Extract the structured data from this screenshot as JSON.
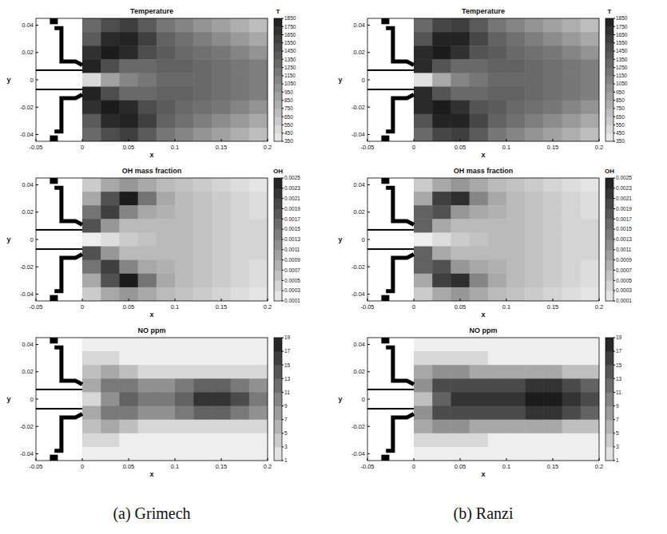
{
  "chart_data": [
    {
      "type": "heatmap",
      "title": "Temperature",
      "xlabel": "x",
      "ylabel": "y",
      "xlim": [
        -0.05,
        0.2
      ],
      "ylim": [
        -0.045,
        0.045
      ],
      "xticks": [
        -0.05,
        0,
        0.05,
        0.1,
        0.15,
        0.2
      ],
      "yticks": [
        -0.04,
        -0.02,
        0,
        0.02,
        0.04
      ],
      "x": [
        0.01,
        0.03,
        0.05,
        0.07,
        0.09,
        0.11,
        0.13,
        0.15,
        0.17,
        0.19
      ],
      "y": [
        0.04,
        0.03,
        0.02,
        0.01,
        0,
        -0.01,
        -0.02,
        -0.03,
        -0.04
      ],
      "values": [
        [
          1300,
          1500,
          1600,
          1400,
          1200,
          1100,
          1000,
          900,
          800,
          700
        ],
        [
          1400,
          1750,
          1800,
          1600,
          1350,
          1250,
          1150,
          1050,
          950,
          850
        ],
        [
          1700,
          1850,
          1750,
          1500,
          1400,
          1300,
          1250,
          1200,
          1100,
          1000
        ],
        [
          1800,
          1500,
          1300,
          1300,
          1350,
          1350,
          1300,
          1250,
          1200,
          1150
        ],
        [
          500,
          900,
          1100,
          1200,
          1300,
          1300,
          1300,
          1250,
          1200,
          1150
        ],
        [
          1800,
          1500,
          1300,
          1300,
          1350,
          1350,
          1300,
          1250,
          1200,
          1150
        ],
        [
          1700,
          1850,
          1750,
          1500,
          1400,
          1300,
          1250,
          1200,
          1100,
          1000
        ],
        [
          1400,
          1750,
          1800,
          1600,
          1350,
          1250,
          1150,
          1050,
          950,
          850
        ],
        [
          1300,
          1500,
          1600,
          1400,
          1200,
          1100,
          1000,
          900,
          800,
          700
        ]
      ],
      "colorbar_label": "T",
      "zlim": [
        350,
        1850
      ],
      "zticks": [
        350,
        450,
        550,
        650,
        750,
        850,
        950,
        1050,
        1150,
        1250,
        1350,
        1450,
        1550,
        1650,
        1750,
        1850
      ]
    },
    {
      "type": "heatmap",
      "title": "Temperature",
      "xlabel": "x",
      "ylabel": "y",
      "xlim": [
        -0.05,
        0.2
      ],
      "ylim": [
        -0.045,
        0.045
      ],
      "xticks": [
        -0.05,
        0,
        0.05,
        0.1,
        0.15,
        0.2
      ],
      "yticks": [
        -0.04,
        -0.02,
        0,
        0.02,
        0.04
      ],
      "x": [
        0.01,
        0.03,
        0.05,
        0.07,
        0.09,
        0.11,
        0.13,
        0.15,
        0.17,
        0.19
      ],
      "y": [
        0.04,
        0.03,
        0.02,
        0.01,
        0,
        -0.01,
        -0.02,
        -0.03,
        -0.04
      ],
      "values": [
        [
          1300,
          1550,
          1600,
          1400,
          1200,
          1100,
          1000,
          900,
          800,
          700
        ],
        [
          1450,
          1800,
          1800,
          1550,
          1350,
          1250,
          1150,
          1050,
          950,
          850
        ],
        [
          1750,
          1850,
          1700,
          1450,
          1400,
          1300,
          1250,
          1200,
          1100,
          1000
        ],
        [
          1750,
          1450,
          1300,
          1300,
          1350,
          1350,
          1300,
          1250,
          1200,
          1150
        ],
        [
          450,
          850,
          1100,
          1200,
          1300,
          1300,
          1300,
          1250,
          1200,
          1150
        ],
        [
          1750,
          1450,
          1300,
          1300,
          1350,
          1350,
          1300,
          1250,
          1200,
          1150
        ],
        [
          1750,
          1850,
          1700,
          1450,
          1400,
          1300,
          1250,
          1200,
          1100,
          1000
        ],
        [
          1450,
          1800,
          1800,
          1550,
          1350,
          1250,
          1150,
          1050,
          950,
          850
        ],
        [
          1300,
          1550,
          1600,
          1400,
          1200,
          1100,
          1000,
          900,
          800,
          700
        ]
      ],
      "colorbar_label": "T",
      "zlim": [
        350,
        1850
      ],
      "zticks": [
        350,
        450,
        550,
        650,
        750,
        850,
        950,
        1050,
        1150,
        1250,
        1350,
        1450,
        1550,
        1650,
        1750,
        1850
      ]
    },
    {
      "type": "heatmap",
      "title": "OH mass fraction",
      "xlabel": "x",
      "ylabel": "y",
      "xlim": [
        -0.05,
        0.2
      ],
      "ylim": [
        -0.045,
        0.045
      ],
      "xticks": [
        -0.05,
        0,
        0.05,
        0.1,
        0.15,
        0.2
      ],
      "yticks": [
        -0.04,
        -0.02,
        0,
        0.02,
        0.04
      ],
      "x": [
        0.01,
        0.03,
        0.05,
        0.07,
        0.09,
        0.11,
        0.13,
        0.15,
        0.17,
        0.19
      ],
      "y": [
        0.04,
        0.03,
        0.02,
        0.01,
        0,
        -0.01,
        -0.02,
        -0.03,
        -0.04
      ],
      "values": [
        [
          0.0005,
          0.0009,
          0.0011,
          0.0009,
          0.0007,
          0.0006,
          0.0005,
          0.0004,
          0.0003,
          0.0002
        ],
        [
          0.0009,
          0.0019,
          0.0025,
          0.0015,
          0.0009,
          0.0007,
          0.0006,
          0.0005,
          0.0004,
          0.0003
        ],
        [
          0.0015,
          0.0021,
          0.0013,
          0.0009,
          0.0008,
          0.0007,
          0.0006,
          0.0005,
          0.0004,
          0.0003
        ],
        [
          0.0019,
          0.0011,
          0.0007,
          0.0007,
          0.0007,
          0.0007,
          0.0006,
          0.0005,
          0.0004,
          0.0004
        ],
        [
          0.0001,
          0.0003,
          0.0005,
          0.0006,
          0.0007,
          0.0007,
          0.0006,
          0.0005,
          0.0004,
          0.0004
        ],
        [
          0.0019,
          0.0011,
          0.0007,
          0.0007,
          0.0007,
          0.0007,
          0.0006,
          0.0005,
          0.0004,
          0.0004
        ],
        [
          0.0015,
          0.0021,
          0.0013,
          0.0009,
          0.0008,
          0.0007,
          0.0006,
          0.0005,
          0.0004,
          0.0003
        ],
        [
          0.0009,
          0.0019,
          0.0025,
          0.0015,
          0.0009,
          0.0007,
          0.0006,
          0.0005,
          0.0004,
          0.0003
        ],
        [
          0.0005,
          0.0009,
          0.0011,
          0.0009,
          0.0007,
          0.0006,
          0.0005,
          0.0004,
          0.0003,
          0.0002
        ]
      ],
      "colorbar_label": "OH",
      "zlim": [
        0.0001,
        0.0025
      ],
      "zticks": [
        0.0001,
        0.0003,
        0.0005,
        0.0007,
        0.0009,
        0.0011,
        0.0013,
        0.0015,
        0.0017,
        0.0019,
        0.0021,
        0.0023,
        0.0025
      ]
    },
    {
      "type": "heatmap",
      "title": "OH mass fraction",
      "xlabel": "x",
      "ylabel": "y",
      "xlim": [
        -0.05,
        0.2
      ],
      "ylim": [
        -0.045,
        0.045
      ],
      "xticks": [
        -0.05,
        0,
        0.05,
        0.1,
        0.15,
        0.2
      ],
      "yticks": [
        -0.04,
        -0.02,
        0,
        0.02,
        0.04
      ],
      "x": [
        0.01,
        0.03,
        0.05,
        0.07,
        0.09,
        0.11,
        0.13,
        0.15,
        0.17,
        0.19
      ],
      "y": [
        0.04,
        0.03,
        0.02,
        0.01,
        0,
        -0.01,
        -0.02,
        -0.03,
        -0.04
      ],
      "values": [
        [
          0.0005,
          0.0009,
          0.0011,
          0.0009,
          0.0007,
          0.0006,
          0.0005,
          0.0004,
          0.0003,
          0.0002
        ],
        [
          0.0009,
          0.0021,
          0.0023,
          0.0013,
          0.0009,
          0.0007,
          0.0006,
          0.0005,
          0.0004,
          0.0003
        ],
        [
          0.0017,
          0.0019,
          0.0011,
          0.0009,
          0.0008,
          0.0007,
          0.0006,
          0.0005,
          0.0004,
          0.0003
        ],
        [
          0.0017,
          0.0009,
          0.0007,
          0.0007,
          0.0007,
          0.0007,
          0.0006,
          0.0005,
          0.0004,
          0.0004
        ],
        [
          0.0001,
          0.0003,
          0.0005,
          0.0006,
          0.0007,
          0.0007,
          0.0006,
          0.0005,
          0.0004,
          0.0004
        ],
        [
          0.0017,
          0.0009,
          0.0007,
          0.0007,
          0.0007,
          0.0007,
          0.0006,
          0.0005,
          0.0004,
          0.0004
        ],
        [
          0.0017,
          0.0019,
          0.0011,
          0.0009,
          0.0008,
          0.0007,
          0.0006,
          0.0005,
          0.0004,
          0.0003
        ],
        [
          0.0009,
          0.0021,
          0.0023,
          0.0013,
          0.0009,
          0.0007,
          0.0006,
          0.0005,
          0.0004,
          0.0003
        ],
        [
          0.0005,
          0.0009,
          0.0011,
          0.0009,
          0.0007,
          0.0006,
          0.0005,
          0.0004,
          0.0003,
          0.0002
        ]
      ],
      "colorbar_label": "OH",
      "zlim": [
        0.0001,
        0.0025
      ],
      "zticks": [
        0.0001,
        0.0003,
        0.0005,
        0.0007,
        0.0009,
        0.0011,
        0.0013,
        0.0015,
        0.0017,
        0.0019,
        0.0021,
        0.0023,
        0.0025
      ]
    },
    {
      "type": "heatmap",
      "title": "NO ppm",
      "xlabel": "x",
      "ylabel": "y",
      "xlim": [
        -0.05,
        0.2
      ],
      "ylim": [
        -0.045,
        0.045
      ],
      "xticks": [
        -0.05,
        0,
        0.05,
        0.1,
        0.15,
        0.2
      ],
      "yticks": [
        -0.04,
        -0.02,
        0,
        0.02,
        0.04
      ],
      "x": [
        0.01,
        0.03,
        0.05,
        0.07,
        0.09,
        0.11,
        0.13,
        0.15,
        0.17,
        0.19
      ],
      "y": [
        0.04,
        0.03,
        0.02,
        0.01,
        0,
        -0.01,
        -0.02,
        -0.03,
        -0.04
      ],
      "values": [
        [
          1,
          1,
          1,
          1,
          1,
          1,
          1,
          1,
          1,
          1
        ],
        [
          3,
          3,
          1,
          1,
          1,
          1,
          1,
          1,
          1,
          1
        ],
        [
          5,
          7,
          5,
          3,
          3,
          3,
          3,
          3,
          3,
          3
        ],
        [
          7,
          11,
          11,
          9,
          9,
          11,
          13,
          13,
          11,
          9
        ],
        [
          3,
          9,
          13,
          11,
          11,
          13,
          17,
          17,
          15,
          11
        ],
        [
          7,
          11,
          11,
          9,
          9,
          11,
          13,
          13,
          11,
          9
        ],
        [
          5,
          7,
          5,
          3,
          3,
          3,
          3,
          3,
          3,
          3
        ],
        [
          3,
          3,
          1,
          1,
          1,
          1,
          1,
          1,
          1,
          1
        ],
        [
          1,
          1,
          1,
          1,
          1,
          1,
          1,
          1,
          1,
          1
        ]
      ],
      "zlim": [
        1,
        19
      ],
      "zticks": [
        1,
        3,
        5,
        7,
        9,
        11,
        13,
        15,
        17,
        19
      ]
    },
    {
      "type": "heatmap",
      "title": "NO ppm",
      "xlabel": "x",
      "ylabel": "y",
      "xlim": [
        -0.05,
        0.2
      ],
      "ylim": [
        -0.045,
        0.045
      ],
      "xticks": [
        -0.05,
        0,
        0.05,
        0.1,
        0.15,
        0.2
      ],
      "yticks": [
        -0.04,
        -0.02,
        0,
        0.02,
        0.04
      ],
      "x": [
        0.01,
        0.03,
        0.05,
        0.07,
        0.09,
        0.11,
        0.13,
        0.15,
        0.17,
        0.19
      ],
      "y": [
        0.04,
        0.03,
        0.02,
        0.01,
        0,
        -0.01,
        -0.02,
        -0.03,
        -0.04
      ],
      "values": [
        [
          1,
          1,
          1,
          1,
          1,
          1,
          1,
          1,
          1,
          1
        ],
        [
          3,
          3,
          3,
          3,
          1,
          1,
          1,
          1,
          1,
          1
        ],
        [
          7,
          9,
          9,
          7,
          7,
          7,
          7,
          7,
          5,
          5
        ],
        [
          9,
          15,
          15,
          15,
          15,
          15,
          17,
          17,
          15,
          13
        ],
        [
          5,
          13,
          17,
          17,
          17,
          17,
          19,
          19,
          17,
          15
        ],
        [
          9,
          15,
          15,
          15,
          15,
          15,
          17,
          17,
          15,
          13
        ],
        [
          7,
          9,
          9,
          7,
          7,
          7,
          7,
          7,
          5,
          5
        ],
        [
          3,
          3,
          3,
          3,
          1,
          1,
          1,
          1,
          1,
          1
        ],
        [
          1,
          1,
          1,
          1,
          1,
          1,
          1,
          1,
          1,
          1
        ]
      ],
      "zlim": [
        1,
        19
      ],
      "zticks": [
        1,
        3,
        5,
        7,
        9,
        11,
        13,
        15,
        17,
        19
      ]
    }
  ],
  "captions": [
    "(a) Grimech",
    "(b) Ranzi"
  ]
}
